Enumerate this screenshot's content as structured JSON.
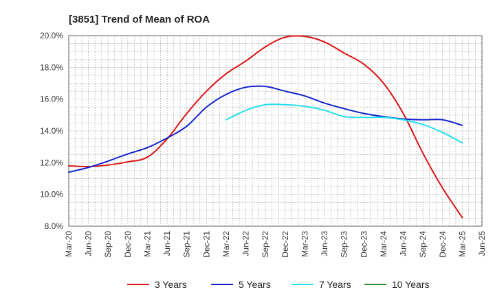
{
  "chart_data": {
    "type": "line",
    "title": "[3851]  Trend of Mean of ROA",
    "xlabel": "",
    "ylabel": "",
    "ylim": [
      8.0,
      20.0
    ],
    "yticks": [
      8.0,
      10.0,
      12.0,
      14.0,
      16.0,
      18.0,
      20.0
    ],
    "ytick_labels": [
      "8.0%",
      "10.0%",
      "12.0%",
      "14.0%",
      "16.0%",
      "18.0%",
      "20.0%"
    ],
    "categories": [
      "Mar-20",
      "Jun-20",
      "Sep-20",
      "Dec-20",
      "Mar-21",
      "Jun-21",
      "Sep-21",
      "Dec-21",
      "Mar-22",
      "Jun-22",
      "Sep-22",
      "Dec-22",
      "Mar-23",
      "Jun-23",
      "Sep-23",
      "Dec-23",
      "Mar-24",
      "Jun-24",
      "Sep-24",
      "Dec-24",
      "Mar-25",
      "Jun-25"
    ],
    "grid": true,
    "legend_position": "bottom",
    "series": [
      {
        "name": "3 Years",
        "color": "#dd1111",
        "values": [
          11.8,
          11.75,
          11.85,
          12.05,
          12.35,
          13.5,
          15.1,
          16.5,
          17.6,
          18.4,
          19.3,
          19.9,
          19.95,
          19.6,
          18.9,
          18.2,
          17.0,
          15.1,
          12.6,
          10.4,
          8.55,
          null
        ]
      },
      {
        "name": "5 Years",
        "color": "#1122cc",
        "values": [
          11.4,
          11.7,
          12.1,
          12.55,
          12.95,
          13.55,
          14.3,
          15.5,
          16.3,
          16.75,
          16.8,
          16.5,
          16.2,
          15.75,
          15.4,
          15.1,
          14.9,
          14.75,
          14.7,
          14.7,
          14.35,
          null
        ]
      },
      {
        "name": "7 Years",
        "color": "#22e0ee",
        "values": [
          null,
          null,
          null,
          null,
          null,
          null,
          null,
          null,
          14.7,
          15.3,
          15.65,
          15.65,
          15.55,
          15.3,
          14.9,
          14.85,
          14.85,
          14.7,
          14.4,
          13.9,
          13.25,
          null
        ]
      },
      {
        "name": "10 Years",
        "color": "#228822",
        "values": [
          null,
          null,
          null,
          null,
          null,
          null,
          null,
          null,
          null,
          null,
          null,
          null,
          null,
          null,
          null,
          null,
          null,
          null,
          null,
          null,
          null,
          null
        ]
      }
    ]
  }
}
